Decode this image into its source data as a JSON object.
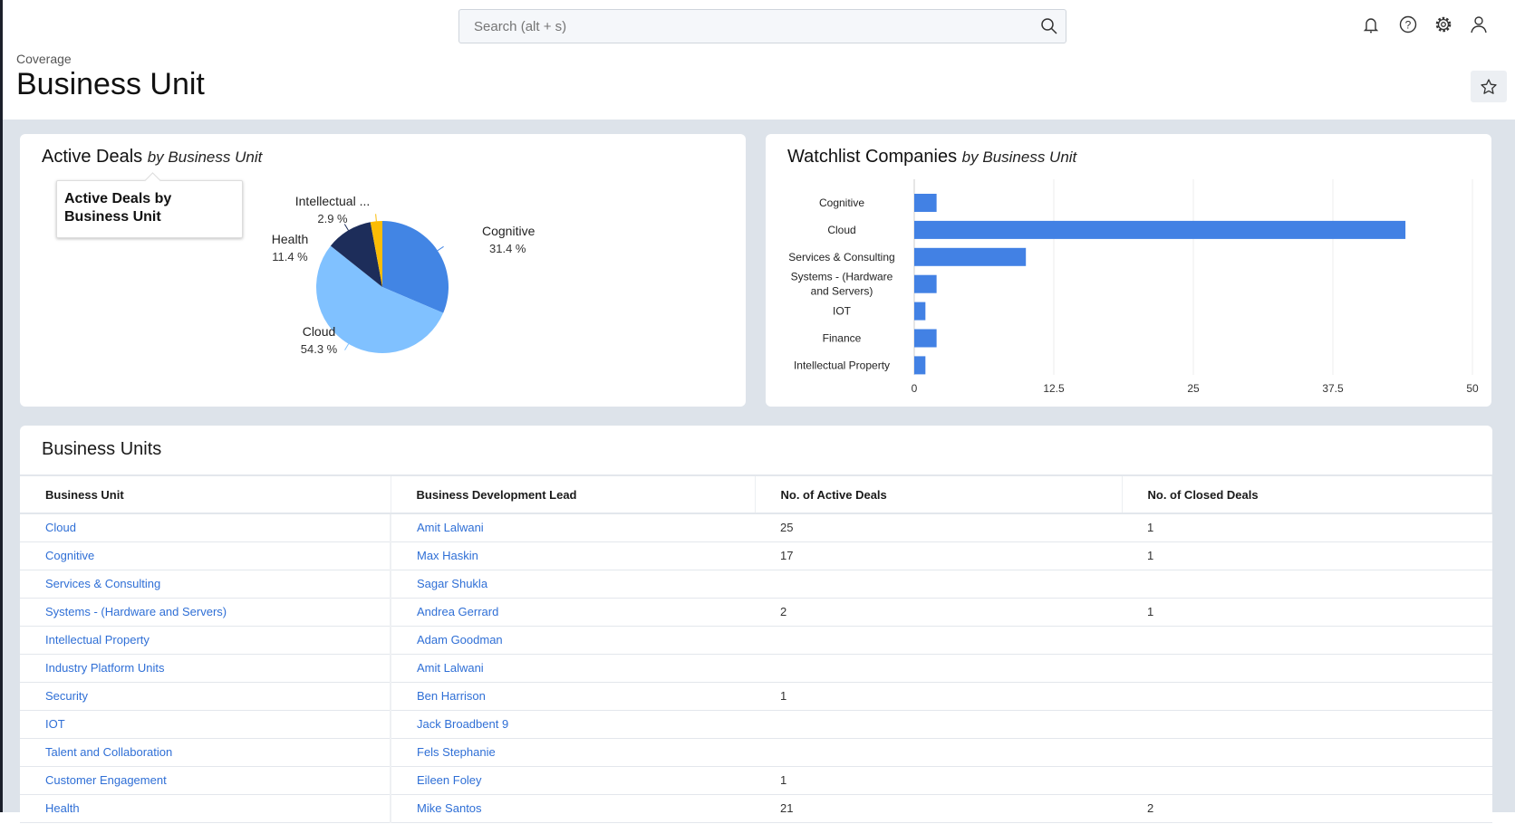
{
  "header": {
    "search_placeholder": "Search (alt + s)",
    "icons": [
      "search-icon",
      "bell-icon",
      "help-icon",
      "gear-icon",
      "user-icon"
    ]
  },
  "page": {
    "breadcrumb": "Coverage",
    "title": "Business Unit",
    "favorite_icon": "star-icon"
  },
  "active_deals": {
    "title": "Active Deals",
    "subtitle": "by Business Unit",
    "tooltip": "Active Deals by Business Unit",
    "chart_data": {
      "type": "pie",
      "slices": [
        {
          "label": "Cognitive",
          "value": 31.4,
          "display": "31.4 %",
          "color": "#4285e4"
        },
        {
          "label": "Cloud",
          "value": 54.3,
          "display": "54.3 %",
          "color": "#80c1ff"
        },
        {
          "label": "Health",
          "value": 11.4,
          "display": "11.4 %",
          "color": "#1d2d5a"
        },
        {
          "label": "Intellectual ...",
          "value": 2.9,
          "display": "2.9 %",
          "color": "#fbbc05"
        }
      ]
    }
  },
  "watchlist": {
    "title": "Watchlist Companies",
    "subtitle": "by Business Unit",
    "chart_data": {
      "type": "bar",
      "orientation": "horizontal",
      "categories": [
        "Cognitive",
        "Cloud",
        "Services & Consulting",
        "Systems - (Hardware and Servers)",
        "IOT",
        "Finance",
        "Intellectual Property"
      ],
      "values": [
        2,
        44,
        10,
        2,
        1,
        2,
        1
      ],
      "xlim": [
        0,
        50
      ],
      "ticks": [
        "0",
        "12.5",
        "25",
        "37.5",
        "50"
      ],
      "grid": true,
      "color": "#4281e4"
    }
  },
  "business_units": {
    "title": "Business Units",
    "columns": [
      "Business Unit",
      "Business Development Lead",
      "No. of Active Deals",
      "No. of Closed Deals"
    ],
    "rows": [
      [
        "Cloud",
        "Amit Lalwani",
        "25",
        "1"
      ],
      [
        "Cognitive",
        "Max Haskin",
        "17",
        "1"
      ],
      [
        "Services & Consulting",
        "Sagar Shukla",
        "",
        ""
      ],
      [
        "Systems - (Hardware and Servers)",
        "Andrea Gerrard",
        "2",
        "1"
      ],
      [
        "Intellectual Property",
        "Adam Goodman",
        "",
        ""
      ],
      [
        "Industry Platform Units",
        "Amit Lalwani",
        "",
        ""
      ],
      [
        "Security",
        "Ben Harrison",
        "1",
        ""
      ],
      [
        "IOT",
        "Jack Broadbent 9",
        "",
        ""
      ],
      [
        "Talent and Collaboration",
        "Fels Stephanie",
        "",
        ""
      ],
      [
        "Customer Engagement",
        "Eileen Foley",
        "1",
        ""
      ],
      [
        "Health",
        "Mike Santos",
        "21",
        "2"
      ]
    ]
  }
}
